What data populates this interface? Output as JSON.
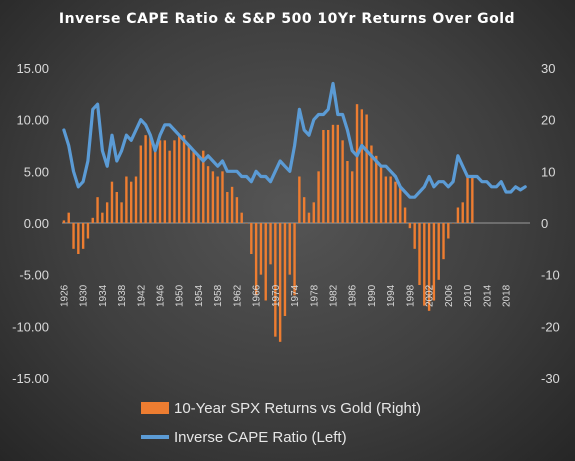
{
  "chart_data": {
    "type": "bar+line",
    "title": "Inverse CAPE Ratio & S&P 500 10Yr Returns Over Gold",
    "left_axis": {
      "min": -15,
      "max": 15,
      "step": 5,
      "tick_labels": [
        "15.00",
        "10.00",
        "5.00",
        "0.00",
        "-5.00",
        "-10.00",
        "-15.00"
      ]
    },
    "right_axis": {
      "min": -30,
      "max": 30,
      "step": 10,
      "tick_labels": [
        "30",
        "20",
        "10",
        "0",
        "-10",
        "-20",
        "-30"
      ]
    },
    "x_tick_labels": [
      "1926",
      "1930",
      "1934",
      "1938",
      "1942",
      "1946",
      "1950",
      "1954",
      "1958",
      "1962",
      "1966",
      "1970",
      "1974",
      "1978",
      "1982",
      "1986",
      "1990",
      "1994",
      "1998",
      "2002",
      "2006",
      "2010",
      "2014",
      "2018"
    ],
    "x_start": 1926,
    "bar_years": [
      1926,
      1927,
      1928,
      1929,
      1930,
      1931,
      1932,
      1933,
      1934,
      1935,
      1936,
      1937,
      1938,
      1939,
      1940,
      1941,
      1942,
      1943,
      1944,
      1945,
      1946,
      1947,
      1948,
      1949,
      1950,
      1951,
      1952,
      1953,
      1954,
      1955,
      1956,
      1957,
      1958,
      1959,
      1960,
      1961,
      1962,
      1963,
      1964,
      1965,
      1966,
      1967,
      1968,
      1969,
      1970,
      1971,
      1972,
      1973,
      1974,
      1975,
      1976,
      1977,
      1978,
      1979,
      1980,
      1981,
      1982,
      1983,
      1984,
      1985,
      1986,
      1987,
      1988,
      1989,
      1990,
      1991,
      1992,
      1993,
      1994,
      1995,
      1996,
      1997,
      1998,
      1999,
      2000,
      2001,
      2002,
      2003,
      2004,
      2005,
      2006,
      2007,
      2008,
      2009,
      2010,
      2011
    ],
    "series": [
      {
        "name": "10-Year SPX Returns vs Gold (Right)",
        "axis": "right",
        "color": "#ed7d31",
        "values": [
          0.5,
          2,
          -5,
          -6,
          -5,
          -3,
          1,
          5,
          2,
          4,
          8,
          6,
          4,
          9,
          8,
          9,
          15,
          17,
          17,
          15,
          16,
          16,
          14,
          16,
          17,
          17,
          15,
          14,
          13,
          14,
          11,
          10,
          9,
          10,
          6,
          7,
          5,
          2,
          0,
          -6,
          -14,
          -10,
          -15,
          -8,
          -22,
          -23,
          -18,
          -10,
          -14,
          9,
          5,
          2,
          4,
          10,
          18,
          18,
          19,
          19,
          16,
          12,
          10,
          23,
          22,
          21,
          15,
          13,
          11,
          9,
          9,
          8,
          7,
          3,
          -1,
          -5,
          -12,
          -16,
          -17,
          -15,
          -11,
          -7,
          -3,
          0,
          3,
          4,
          9,
          9
        ]
      },
      {
        "name": "Inverse CAPE Ratio (Left)",
        "axis": "left",
        "color": "#5b9bd5",
        "years": [
          1926,
          1927,
          1928,
          1929,
          1930,
          1931,
          1932,
          1933,
          1934,
          1935,
          1936,
          1937,
          1938,
          1939,
          1940,
          1941,
          1942,
          1943,
          1944,
          1945,
          1946,
          1947,
          1948,
          1949,
          1950,
          1951,
          1952,
          1953,
          1954,
          1955,
          1956,
          1957,
          1958,
          1959,
          1960,
          1961,
          1962,
          1963,
          1964,
          1965,
          1966,
          1967,
          1968,
          1969,
          1970,
          1971,
          1972,
          1973,
          1974,
          1975,
          1976,
          1977,
          1978,
          1979,
          1980,
          1981,
          1982,
          1983,
          1984,
          1985,
          1986,
          1987,
          1988,
          1989,
          1990,
          1991,
          1992,
          1993,
          1994,
          1995,
          1996,
          1997,
          1998,
          1999,
          2000,
          2001,
          2002,
          2003,
          2004,
          2005,
          2006,
          2007,
          2008,
          2009,
          2010,
          2011,
          2012,
          2013,
          2014,
          2015,
          2016,
          2017,
          2018,
          2019,
          2020,
          2021,
          2022
        ],
        "values": [
          9.0,
          7.5,
          5.0,
          3.5,
          4.0,
          6.0,
          11.0,
          11.5,
          7.0,
          5.5,
          8.5,
          6.0,
          7.0,
          8.5,
          8.0,
          9.0,
          10.0,
          9.5,
          8.5,
          7.0,
          8.5,
          9.5,
          9.5,
          9.0,
          8.5,
          8.0,
          7.5,
          7.0,
          6.5,
          6.0,
          6.5,
          6.0,
          5.5,
          6.0,
          5.0,
          5.0,
          5.0,
          4.5,
          4.5,
          4.0,
          5.0,
          4.5,
          4.5,
          4.0,
          5.0,
          6.0,
          5.5,
          5.0,
          7.5,
          11.0,
          9.0,
          8.5,
          10.0,
          10.5,
          10.5,
          11.0,
          13.5,
          10.5,
          10.5,
          9.0,
          7.0,
          6.5,
          7.5,
          7.0,
          6.5,
          6.0,
          5.5,
          5.5,
          5.0,
          4.5,
          3.5,
          3.0,
          2.5,
          2.5,
          3.0,
          3.5,
          4.5,
          3.5,
          4.0,
          4.0,
          3.5,
          4.0,
          6.5,
          5.5,
          4.5,
          4.5,
          4.5,
          4.0,
          4.0,
          3.5,
          3.5,
          4.0,
          3.0,
          3.0,
          3.5,
          3.2,
          3.5
        ]
      }
    ],
    "legend": {
      "position": "bottom"
    }
  }
}
